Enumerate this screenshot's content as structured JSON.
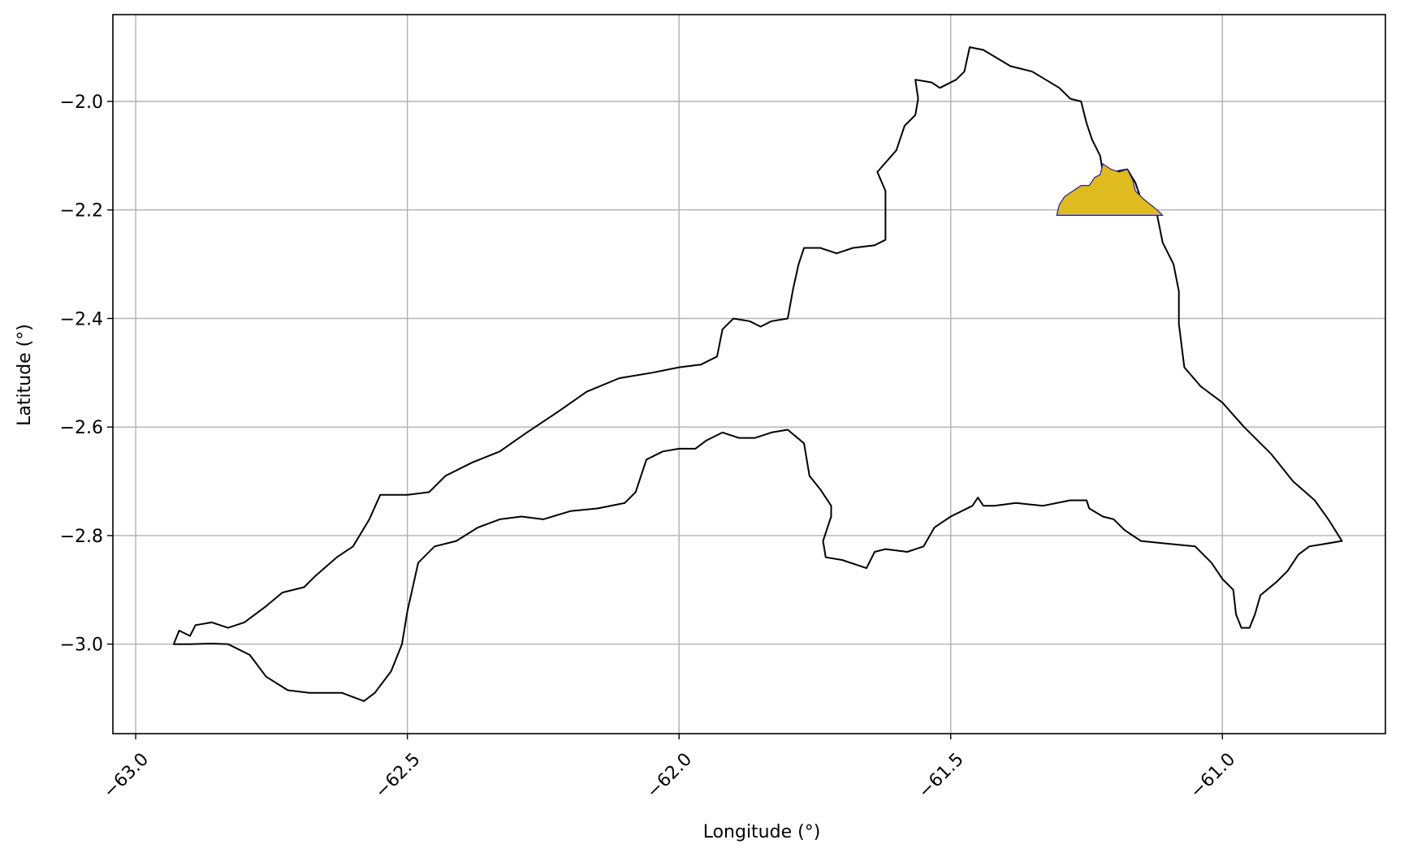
{
  "chart_data": {
    "type": "map",
    "xlabel": "Longitude (°)",
    "ylabel": "Latitude (°)",
    "xlim": [
      -63.042,
      -60.7
    ],
    "ylim": [
      -3.165,
      -1.84
    ],
    "grid": true,
    "xticks": [
      -63.0,
      -62.5,
      -62.0,
      -61.5,
      -61.0
    ],
    "xtick_labels": [
      "−63.0",
      "−62.5",
      "−62.0",
      "−61.5",
      "−61.0"
    ],
    "yticks": [
      -2.0,
      -2.2,
      -2.4,
      -2.6,
      -2.8,
      -3.0
    ],
    "ytick_labels": [
      "−2.0",
      "−2.2",
      "−2.4",
      "−2.6",
      "−2.8",
      "−3.0"
    ],
    "colors": {
      "outline": "#000000",
      "highlight_fill": "#dfbb1f",
      "highlight_edge": "#1f1fbf",
      "grid": "#b0b0b0"
    },
    "outline": [
      [
        -62.93,
        -3.0
      ],
      [
        -62.92,
        -2.975
      ],
      [
        -62.9,
        -2.985
      ],
      [
        -62.89,
        -2.965
      ],
      [
        -62.86,
        -2.96
      ],
      [
        -62.83,
        -2.97
      ],
      [
        -62.8,
        -2.96
      ],
      [
        -62.76,
        -2.93
      ],
      [
        -62.73,
        -2.905
      ],
      [
        -62.69,
        -2.895
      ],
      [
        -62.67,
        -2.875
      ],
      [
        -62.63,
        -2.84
      ],
      [
        -62.6,
        -2.82
      ],
      [
        -62.57,
        -2.77
      ],
      [
        -62.55,
        -2.725
      ],
      [
        -62.5,
        -2.725
      ],
      [
        -62.46,
        -2.72
      ],
      [
        -62.43,
        -2.69
      ],
      [
        -62.38,
        -2.665
      ],
      [
        -62.33,
        -2.645
      ],
      [
        -62.28,
        -2.61
      ],
      [
        -62.22,
        -2.57
      ],
      [
        -62.17,
        -2.535
      ],
      [
        -62.11,
        -2.51
      ],
      [
        -62.05,
        -2.5
      ],
      [
        -62.0,
        -2.49
      ],
      [
        -61.96,
        -2.485
      ],
      [
        -61.93,
        -2.47
      ],
      [
        -61.92,
        -2.42
      ],
      [
        -61.9,
        -2.4
      ],
      [
        -61.87,
        -2.405
      ],
      [
        -61.85,
        -2.415
      ],
      [
        -61.83,
        -2.405
      ],
      [
        -61.8,
        -2.4
      ],
      [
        -61.79,
        -2.345
      ],
      [
        -61.78,
        -2.3
      ],
      [
        -61.77,
        -2.27
      ],
      [
        -61.74,
        -2.27
      ],
      [
        -61.71,
        -2.28
      ],
      [
        -61.68,
        -2.27
      ],
      [
        -61.64,
        -2.265
      ],
      [
        -61.62,
        -2.255
      ],
      [
        -61.62,
        -2.2
      ],
      [
        -61.62,
        -2.165
      ],
      [
        -61.635,
        -2.13
      ],
      [
        -61.6,
        -2.09
      ],
      [
        -61.585,
        -2.045
      ],
      [
        -61.565,
        -2.025
      ],
      [
        -61.56,
        -1.995
      ],
      [
        -61.565,
        -1.96
      ],
      [
        -61.535,
        -1.965
      ],
      [
        -61.52,
        -1.975
      ],
      [
        -61.49,
        -1.96
      ],
      [
        -61.475,
        -1.945
      ],
      [
        -61.465,
        -1.9
      ],
      [
        -61.44,
        -1.905
      ],
      [
        -61.39,
        -1.935
      ],
      [
        -61.35,
        -1.945
      ],
      [
        -61.3,
        -1.975
      ],
      [
        -61.28,
        -1.995
      ],
      [
        -61.26,
        -2.0
      ],
      [
        -61.25,
        -2.04
      ],
      [
        -61.24,
        -2.07
      ],
      [
        -61.225,
        -2.1
      ],
      [
        -61.22,
        -2.13
      ],
      [
        -61.2,
        -2.13
      ],
      [
        -61.175,
        -2.125
      ],
      [
        -61.16,
        -2.15
      ],
      [
        -61.15,
        -2.18
      ],
      [
        -61.12,
        -2.21
      ],
      [
        -61.11,
        -2.26
      ],
      [
        -61.09,
        -2.3
      ],
      [
        -61.08,
        -2.35
      ],
      [
        -61.08,
        -2.41
      ],
      [
        -61.07,
        -2.49
      ],
      [
        -61.04,
        -2.525
      ],
      [
        -61.0,
        -2.555
      ],
      [
        -60.96,
        -2.6
      ],
      [
        -60.91,
        -2.65
      ],
      [
        -60.87,
        -2.7
      ],
      [
        -60.83,
        -2.735
      ],
      [
        -60.805,
        -2.77
      ],
      [
        -60.78,
        -2.81
      ],
      [
        -60.81,
        -2.815
      ],
      [
        -60.84,
        -2.82
      ],
      [
        -60.86,
        -2.835
      ],
      [
        -60.88,
        -2.865
      ],
      [
        -60.9,
        -2.885
      ],
      [
        -60.93,
        -2.91
      ],
      [
        -60.94,
        -2.945
      ],
      [
        -60.95,
        -2.97
      ],
      [
        -60.965,
        -2.97
      ],
      [
        -60.975,
        -2.945
      ],
      [
        -60.98,
        -2.9
      ],
      [
        -61.0,
        -2.88
      ],
      [
        -61.02,
        -2.85
      ],
      [
        -61.05,
        -2.82
      ],
      [
        -61.1,
        -2.815
      ],
      [
        -61.15,
        -2.81
      ],
      [
        -61.18,
        -2.79
      ],
      [
        -61.2,
        -2.77
      ],
      [
        -61.22,
        -2.765
      ],
      [
        -61.245,
        -2.75
      ],
      [
        -61.25,
        -2.735
      ],
      [
        -61.28,
        -2.735
      ],
      [
        -61.33,
        -2.745
      ],
      [
        -61.38,
        -2.74
      ],
      [
        -61.42,
        -2.745
      ],
      [
        -61.44,
        -2.745
      ],
      [
        -61.45,
        -2.73
      ],
      [
        -61.46,
        -2.745
      ],
      [
        -61.5,
        -2.765
      ],
      [
        -61.53,
        -2.785
      ],
      [
        -61.55,
        -2.82
      ],
      [
        -61.58,
        -2.83
      ],
      [
        -61.62,
        -2.825
      ],
      [
        -61.64,
        -2.83
      ],
      [
        -61.655,
        -2.86
      ],
      [
        -61.67,
        -2.855
      ],
      [
        -61.7,
        -2.845
      ],
      [
        -61.73,
        -2.84
      ],
      [
        -61.735,
        -2.81
      ],
      [
        -61.72,
        -2.765
      ],
      [
        -61.72,
        -2.745
      ],
      [
        -61.74,
        -2.715
      ],
      [
        -61.76,
        -2.69
      ],
      [
        -61.77,
        -2.63
      ],
      [
        -61.8,
        -2.605
      ],
      [
        -61.83,
        -2.61
      ],
      [
        -61.86,
        -2.62
      ],
      [
        -61.89,
        -2.62
      ],
      [
        -61.92,
        -2.61
      ],
      [
        -61.95,
        -2.625
      ],
      [
        -61.97,
        -2.64
      ],
      [
        -62.0,
        -2.64
      ],
      [
        -62.03,
        -2.645
      ],
      [
        -62.06,
        -2.66
      ],
      [
        -62.08,
        -2.72
      ],
      [
        -62.1,
        -2.74
      ],
      [
        -62.15,
        -2.75
      ],
      [
        -62.2,
        -2.755
      ],
      [
        -62.25,
        -2.77
      ],
      [
        -62.29,
        -2.765
      ],
      [
        -62.33,
        -2.77
      ],
      [
        -62.37,
        -2.785
      ],
      [
        -62.41,
        -2.81
      ],
      [
        -62.45,
        -2.82
      ],
      [
        -62.48,
        -2.85
      ],
      [
        -62.5,
        -2.94
      ],
      [
        -62.51,
        -3.0
      ],
      [
        -62.53,
        -3.05
      ],
      [
        -62.56,
        -3.09
      ],
      [
        -62.58,
        -3.105
      ],
      [
        -62.62,
        -3.09
      ],
      [
        -62.68,
        -3.09
      ],
      [
        -62.72,
        -3.085
      ],
      [
        -62.76,
        -3.06
      ],
      [
        -62.79,
        -3.02
      ],
      [
        -62.83,
        -3.0
      ],
      [
        -62.86,
        -2.999
      ],
      [
        -62.9,
        -3.0
      ],
      [
        -62.93,
        -3.0
      ]
    ],
    "highlight_polygon": [
      [
        -61.305,
        -2.21
      ],
      [
        -61.3,
        -2.19
      ],
      [
        -61.29,
        -2.175
      ],
      [
        -61.275,
        -2.165
      ],
      [
        -61.26,
        -2.155
      ],
      [
        -61.245,
        -2.155
      ],
      [
        -61.235,
        -2.14
      ],
      [
        -61.225,
        -2.135
      ],
      [
        -61.22,
        -2.115
      ],
      [
        -61.205,
        -2.125
      ],
      [
        -61.19,
        -2.13
      ],
      [
        -61.175,
        -2.125
      ],
      [
        -61.165,
        -2.145
      ],
      [
        -61.16,
        -2.165
      ],
      [
        -61.145,
        -2.18
      ],
      [
        -61.12,
        -2.2
      ],
      [
        -61.11,
        -2.21
      ]
    ]
  }
}
